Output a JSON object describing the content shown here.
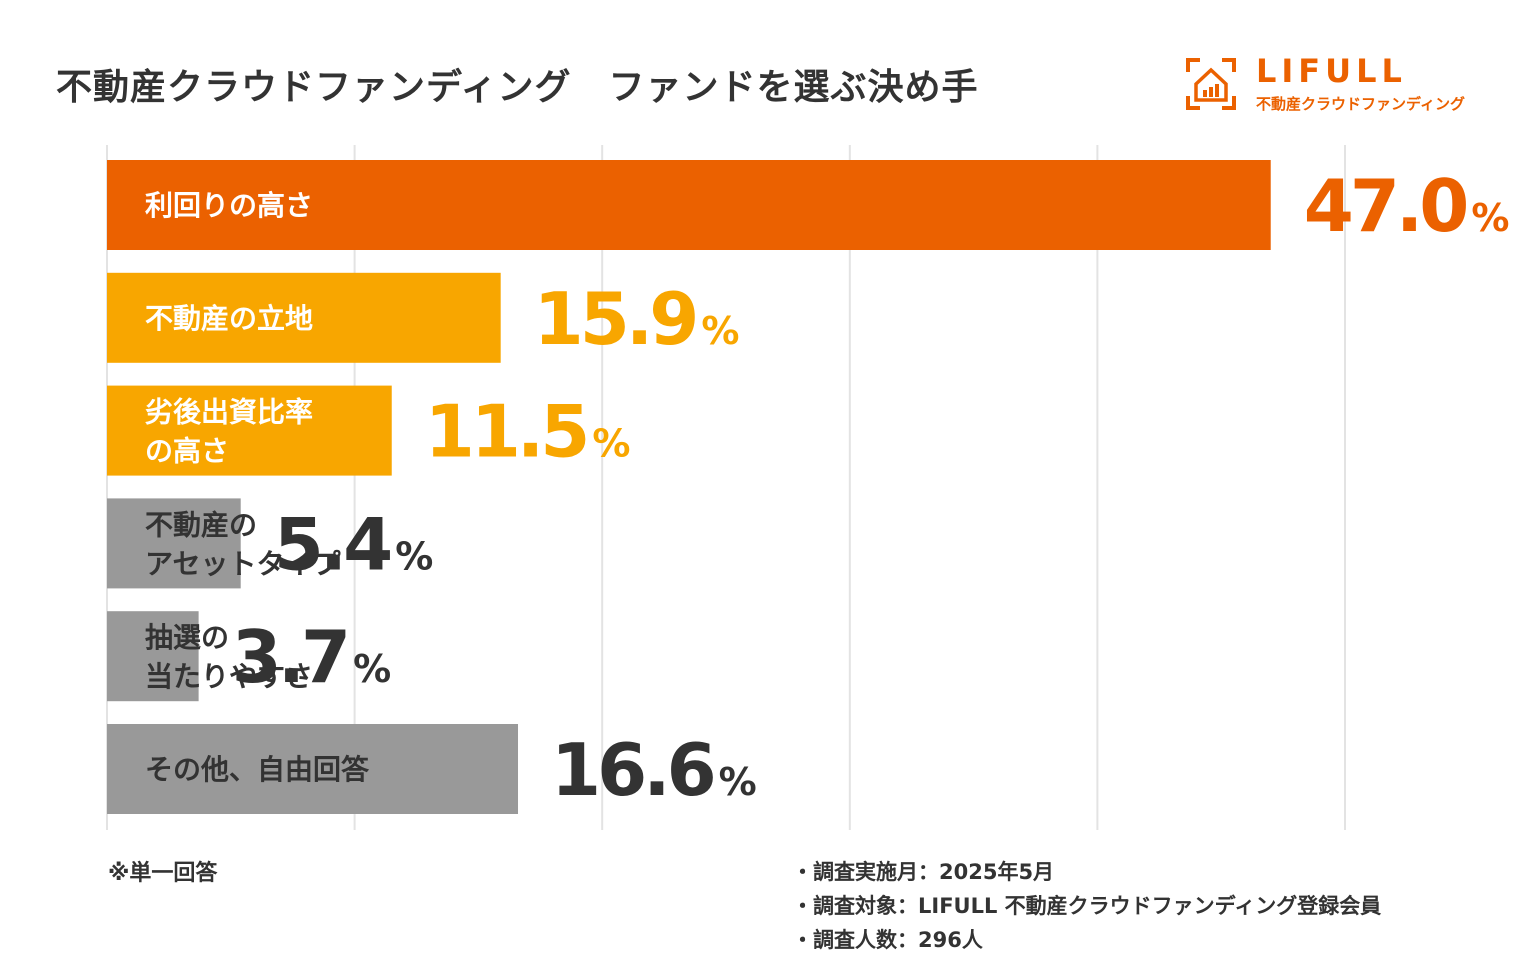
{
  "title": "不動産クラウドファンディング　ファンドを選ぶ決め手",
  "logo": {
    "name": "LIFULL",
    "subtitle": "不動産クラウドファンディング"
  },
  "chart_data": {
    "type": "bar",
    "orientation": "horizontal",
    "title": "不動産クラウドファンディング　ファンドを選ぶ決め手",
    "categories": [
      [
        "利回りの高さ"
      ],
      [
        "不動産の立地"
      ],
      [
        "劣後出資比率",
        "の高さ"
      ],
      [
        "不動産の",
        "アセットタイプ"
      ],
      [
        "抽選の",
        "当たりやすさ"
      ],
      [
        "その他、自由回答"
      ]
    ],
    "values": [
      47.0,
      15.9,
      11.5,
      5.4,
      3.7,
      16.6
    ],
    "value_labels": [
      "47.0",
      "15.9",
      "11.5",
      "5.4",
      "3.7",
      "16.6"
    ],
    "unit": "%",
    "bar_colors": [
      "#eb6100",
      "#f8a600",
      "#f8a600",
      "#999999",
      "#999999",
      "#999999"
    ],
    "value_colors": [
      "#eb6100",
      "#f8a600",
      "#f8a600",
      "#333333",
      "#333333",
      "#333333"
    ],
    "label_colors": [
      "#ffffff",
      "#ffffff",
      "#ffffff",
      "#333333",
      "#333333",
      "#333333"
    ],
    "xlim": [
      0,
      50
    ],
    "grid": true,
    "xlabel": "",
    "ylabel": ""
  },
  "notes": {
    "answer_type": "※単一回答",
    "survey": [
      "・調査実施月：2025年5月",
      "・調査対象：LIFULL 不動産クラウドファンディング登録会員",
      "・調査人数：296人"
    ]
  }
}
